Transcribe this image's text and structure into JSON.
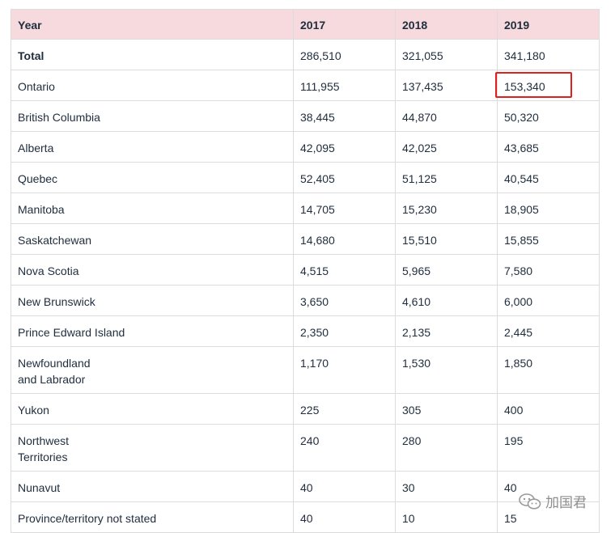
{
  "table": {
    "headers": [
      "Year",
      "2017",
      "2018",
      "2019"
    ],
    "rows": [
      {
        "name": "Total",
        "v2017": "286,510",
        "v2018": "321,055",
        "v2019": "341,180"
      },
      {
        "name": "Ontario",
        "v2017": "111,955",
        "v2018": "137,435",
        "v2019": "153,340"
      },
      {
        "name": "British Columbia",
        "v2017": "38,445",
        "v2018": "44,870",
        "v2019": "50,320"
      },
      {
        "name": "Alberta",
        "v2017": "42,095",
        "v2018": "42,025",
        "v2019": "43,685"
      },
      {
        "name": "Quebec",
        "v2017": "52,405",
        "v2018": "51,125",
        "v2019": "40,545"
      },
      {
        "name": "Manitoba",
        "v2017": "14,705",
        "v2018": "15,230",
        "v2019": "18,905"
      },
      {
        "name": "Saskatchewan",
        "v2017": "14,680",
        "v2018": "15,510",
        "v2019": "15,855"
      },
      {
        "name": "Nova Scotia",
        "v2017": "4,515",
        "v2018": "5,965",
        "v2019": "7,580"
      },
      {
        "name": "New Brunswick",
        "v2017": "3,650",
        "v2018": "4,610",
        "v2019": "6,000"
      },
      {
        "name": "Prince Edward Island",
        "v2017": "2,350",
        "v2018": "2,135",
        "v2019": "2,445"
      },
      {
        "name_line1": "Newfoundland",
        "name_line2": "and Labrador",
        "v2017": "1,170",
        "v2018": "1,530",
        "v2019": "1,850"
      },
      {
        "name": "Yukon",
        "v2017": "225",
        "v2018": "305",
        "v2019": "400"
      },
      {
        "name_line1": "Northwest",
        "name_line2": "Territories",
        "v2017": "240",
        "v2018": "280",
        "v2019": "195"
      },
      {
        "name": "Nunavut",
        "v2017": "40",
        "v2018": "30",
        "v2019": "40"
      },
      {
        "name": "Province/territory not stated",
        "v2017": "40",
        "v2018": "10",
        "v2019": "15"
      }
    ]
  },
  "watermark": {
    "text": "加国君",
    "icon": "wechat-logo-icon"
  },
  "colors": {
    "header_bg": "#f6dadd",
    "highlight_border": "#e0201e",
    "grid": "#dcdcdc"
  }
}
